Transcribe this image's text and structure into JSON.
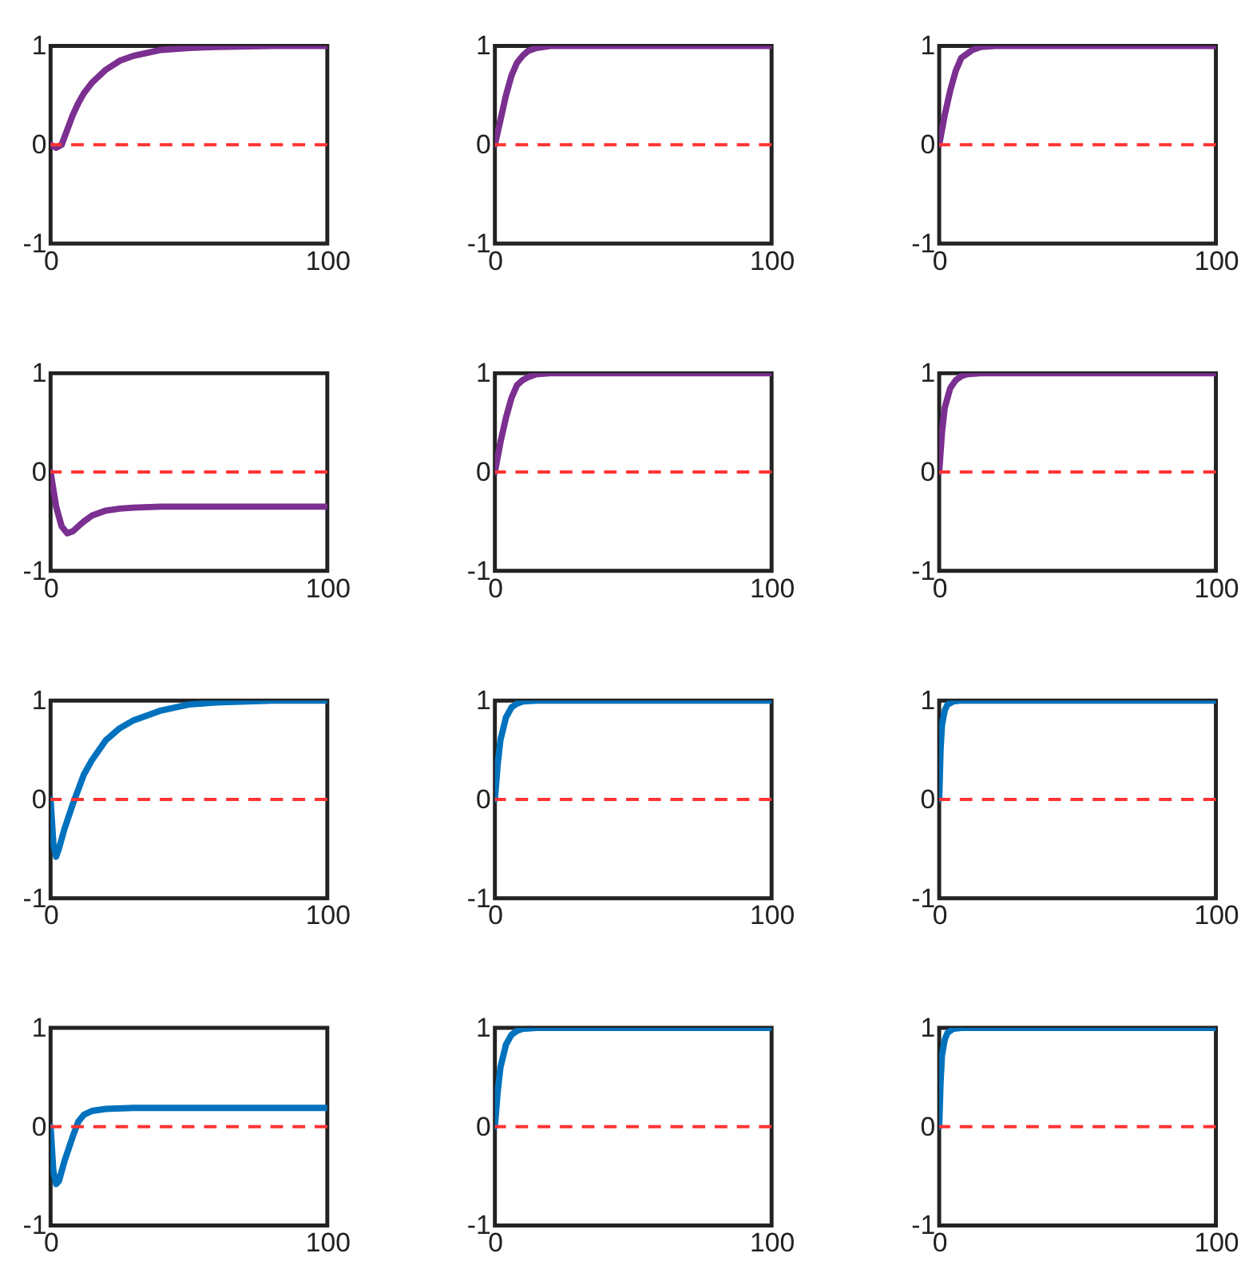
{
  "chart_data": [
    {
      "type": "line",
      "x": [
        0,
        2,
        4,
        6,
        8,
        10,
        12,
        15,
        20,
        25,
        30,
        40,
        50,
        60,
        80,
        100
      ],
      "series": [
        {
          "color": "#7b2f90",
          "values": [
            0,
            -0.03,
            0,
            0.15,
            0.3,
            0.42,
            0.52,
            0.63,
            0.76,
            0.85,
            0.9,
            0.96,
            0.98,
            0.99,
            1,
            1
          ]
        }
      ],
      "xlim": [
        0,
        100
      ],
      "ylim": [
        -1,
        1
      ],
      "xticks": [
        0,
        100
      ],
      "yticks": [
        -1,
        0,
        1
      ],
      "grid": false,
      "ref_lines": [
        {
          "axis": "y",
          "value": 0,
          "color": "#ff3333",
          "line_style": "dashed"
        }
      ]
    },
    {
      "type": "line",
      "x": [
        0,
        2,
        4,
        6,
        8,
        10,
        12,
        15,
        20,
        30,
        50,
        100
      ],
      "series": [
        {
          "color": "#7b2f90",
          "values": [
            0,
            0.25,
            0.5,
            0.7,
            0.83,
            0.9,
            0.95,
            0.98,
            1,
            1,
            1,
            1
          ]
        }
      ],
      "xlim": [
        0,
        100
      ],
      "ylim": [
        -1,
        1
      ],
      "xticks": [
        0,
        100
      ],
      "yticks": [
        -1,
        0,
        1
      ],
      "grid": false,
      "ref_lines": [
        {
          "axis": "y",
          "value": 0,
          "color": "#ff3333",
          "line_style": "dashed"
        }
      ]
    },
    {
      "type": "line",
      "x": [
        0,
        2,
        4,
        6,
        8,
        10,
        12,
        15,
        20,
        30,
        50,
        100
      ],
      "series": [
        {
          "color": "#7b2f90",
          "values": [
            0,
            0.3,
            0.55,
            0.75,
            0.88,
            0.92,
            0.96,
            0.99,
            1,
            1,
            1,
            1
          ]
        }
      ],
      "xlim": [
        0,
        100
      ],
      "ylim": [
        -1,
        1
      ],
      "xticks": [
        0,
        100
      ],
      "yticks": [
        -1,
        0,
        1
      ],
      "grid": false,
      "ref_lines": [
        {
          "axis": "y",
          "value": 0,
          "color": "#ff3333",
          "line_style": "dashed"
        }
      ]
    },
    {
      "type": "line",
      "x": [
        0,
        2,
        4,
        6,
        8,
        10,
        12,
        15,
        20,
        25,
        30,
        40,
        50,
        100
      ],
      "series": [
        {
          "color": "#7b2f90",
          "values": [
            0,
            -0.35,
            -0.55,
            -0.62,
            -0.6,
            -0.55,
            -0.5,
            -0.44,
            -0.39,
            -0.37,
            -0.36,
            -0.35,
            -0.35,
            -0.35
          ]
        }
      ],
      "xlim": [
        0,
        100
      ],
      "ylim": [
        -1,
        1
      ],
      "xticks": [
        0,
        100
      ],
      "yticks": [
        -1,
        0,
        1
      ],
      "grid": false,
      "ref_lines": [
        {
          "axis": "y",
          "value": 0,
          "color": "#ff3333",
          "line_style": "dashed"
        }
      ]
    },
    {
      "type": "line",
      "x": [
        0,
        2,
        4,
        6,
        8,
        10,
        12,
        15,
        20,
        30,
        50,
        100
      ],
      "series": [
        {
          "color": "#7b2f90",
          "values": [
            0,
            0.3,
            0.55,
            0.75,
            0.88,
            0.93,
            0.96,
            0.99,
            1,
            1,
            1,
            1
          ]
        }
      ],
      "xlim": [
        0,
        100
      ],
      "ylim": [
        -1,
        1
      ],
      "xticks": [
        0,
        100
      ],
      "yticks": [
        -1,
        0,
        1
      ],
      "grid": false,
      "ref_lines": [
        {
          "axis": "y",
          "value": 0,
          "color": "#ff3333",
          "line_style": "dashed"
        }
      ]
    },
    {
      "type": "line",
      "x": [
        0,
        1,
        2,
        4,
        6,
        8,
        10,
        15,
        30,
        100
      ],
      "series": [
        {
          "color": "#7b2f90",
          "values": [
            0,
            0.4,
            0.65,
            0.85,
            0.93,
            0.97,
            0.99,
            1,
            1,
            1
          ]
        }
      ],
      "xlim": [
        0,
        100
      ],
      "ylim": [
        -1,
        1
      ],
      "xticks": [
        0,
        100
      ],
      "yticks": [
        -1,
        0,
        1
      ],
      "grid": false,
      "ref_lines": [
        {
          "axis": "y",
          "value": 0,
          "color": "#ff3333",
          "line_style": "dashed"
        }
      ]
    },
    {
      "type": "line",
      "x": [
        0,
        1,
        2,
        3,
        5,
        8,
        10,
        12,
        15,
        20,
        25,
        30,
        40,
        50,
        60,
        80,
        100
      ],
      "series": [
        {
          "color": "#0072bd",
          "values": [
            0,
            -0.45,
            -0.58,
            -0.5,
            -0.3,
            -0.05,
            0.1,
            0.25,
            0.4,
            0.6,
            0.72,
            0.8,
            0.9,
            0.96,
            0.98,
            1,
            1
          ]
        }
      ],
      "xlim": [
        0,
        100
      ],
      "ylim": [
        -1,
        1
      ],
      "xticks": [
        0,
        100
      ],
      "yticks": [
        -1,
        0,
        1
      ],
      "grid": false,
      "ref_lines": [
        {
          "axis": "y",
          "value": 0,
          "color": "#ff3333",
          "line_style": "dashed"
        }
      ]
    },
    {
      "type": "line",
      "x": [
        0,
        1,
        2,
        4,
        6,
        8,
        10,
        15,
        30,
        100
      ],
      "series": [
        {
          "color": "#0072bd",
          "values": [
            0,
            0.35,
            0.6,
            0.83,
            0.93,
            0.97,
            0.99,
            1,
            1,
            1
          ]
        }
      ],
      "xlim": [
        0,
        100
      ],
      "ylim": [
        -1,
        1
      ],
      "xticks": [
        0,
        100
      ],
      "yticks": [
        -1,
        0,
        1
      ],
      "grid": false,
      "ref_lines": [
        {
          "axis": "y",
          "value": 0,
          "color": "#ff3333",
          "line_style": "dashed"
        }
      ]
    },
    {
      "type": "line",
      "x": [
        0,
        0.5,
        1,
        2,
        3,
        5,
        8,
        30,
        100
      ],
      "series": [
        {
          "color": "#0072bd",
          "values": [
            0,
            0.5,
            0.75,
            0.9,
            0.96,
            0.99,
            1,
            1,
            1
          ]
        }
      ],
      "xlim": [
        0,
        100
      ],
      "ylim": [
        -1,
        1
      ],
      "xticks": [
        0,
        100
      ],
      "yticks": [
        -1,
        0,
        1
      ],
      "grid": false,
      "ref_lines": [
        {
          "axis": "y",
          "value": 0,
          "color": "#ff3333",
          "line_style": "dashed"
        }
      ]
    },
    {
      "type": "line",
      "x": [
        0,
        1,
        2,
        3,
        5,
        8,
        10,
        12,
        15,
        20,
        30,
        100
      ],
      "series": [
        {
          "color": "#0072bd",
          "values": [
            0,
            -0.45,
            -0.58,
            -0.55,
            -0.35,
            -0.1,
            0.05,
            0.12,
            0.16,
            0.18,
            0.19,
            0.19
          ]
        }
      ],
      "xlim": [
        0,
        100
      ],
      "ylim": [
        -1,
        1
      ],
      "xticks": [
        0,
        100
      ],
      "yticks": [
        -1,
        0,
        1
      ],
      "grid": false,
      "ref_lines": [
        {
          "axis": "y",
          "value": 0,
          "color": "#ff3333",
          "line_style": "dashed"
        }
      ]
    },
    {
      "type": "line",
      "x": [
        0,
        1,
        2,
        4,
        6,
        8,
        10,
        15,
        30,
        100
      ],
      "series": [
        {
          "color": "#0072bd",
          "values": [
            0,
            0.35,
            0.6,
            0.83,
            0.93,
            0.97,
            0.99,
            1,
            1,
            1
          ]
        }
      ],
      "xlim": [
        0,
        100
      ],
      "ylim": [
        -1,
        1
      ],
      "xticks": [
        0,
        100
      ],
      "yticks": [
        -1,
        0,
        1
      ],
      "grid": false,
      "ref_lines": [
        {
          "axis": "y",
          "value": 0,
          "color": "#ff3333",
          "line_style": "dashed"
        }
      ]
    },
    {
      "type": "line",
      "x": [
        0,
        0.5,
        1,
        2,
        3,
        5,
        8,
        30,
        100
      ],
      "series": [
        {
          "color": "#0072bd",
          "values": [
            0,
            0.45,
            0.72,
            0.88,
            0.95,
            0.99,
            1,
            1,
            1
          ]
        }
      ],
      "xlim": [
        0,
        100
      ],
      "ylim": [
        -1,
        1
      ],
      "xticks": [
        0,
        100
      ],
      "yticks": [
        -1,
        0,
        1
      ],
      "grid": false,
      "ref_lines": [
        {
          "axis": "y",
          "value": 0,
          "color": "#ff3333",
          "line_style": "dashed"
        }
      ]
    }
  ]
}
